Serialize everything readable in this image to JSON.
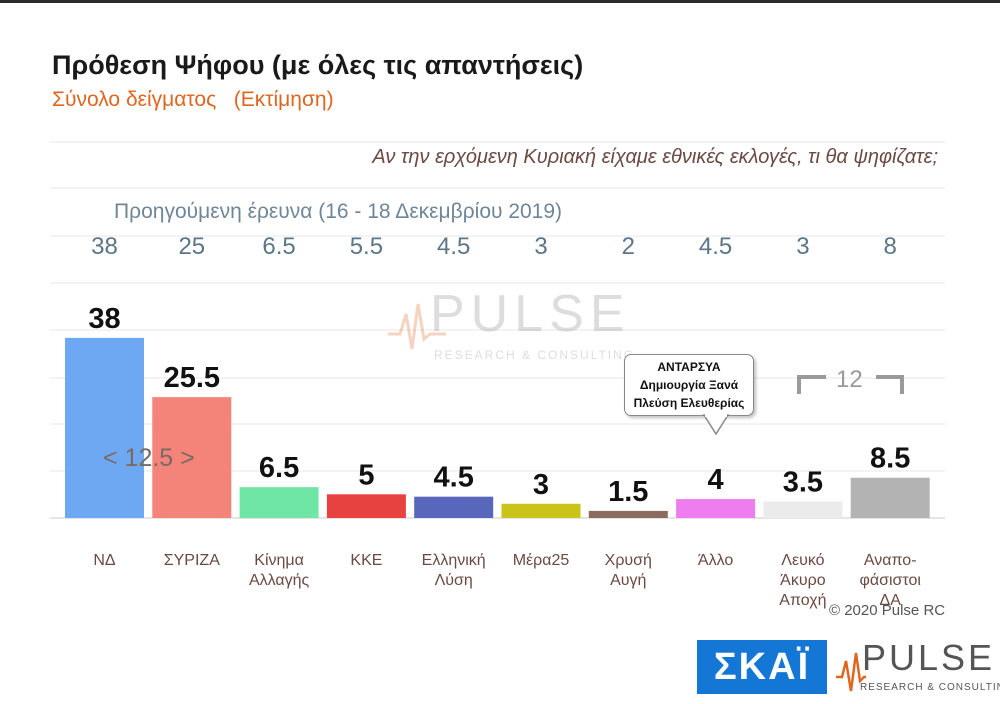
{
  "title": "Πρόθεση Ψήφου (με όλες τις απαντήσεις)",
  "subtitle": "Σύνολο δείγματος   (Εκτίμηση)",
  "question": "Αν την ερχόμενη Κυριακή είχαμε εθνικές εκλογές, τι θα ψηφίζατε;",
  "previous_survey_caption": "Προηγούμενη έρευνα  (16 - 18 Δεκεμβρίου  2019)",
  "callout": {
    "line1": "ΑΝΤΑΡΣΥΑ",
    "line2": "Δημιουργία Ξανά",
    "line3": "Πλεύση Ελευθερίας"
  },
  "bracket_label": "12",
  "diff_label": "< 12.5 >",
  "copyright": "© 2020 Pulse RC",
  "logos": {
    "skai": "ΣΚΑΪ",
    "pulse": "PULSE",
    "pulse_sub": "RESEARCH & CONSULTING"
  },
  "watermark": {
    "word": "PULSE",
    "sub": "RESEARCH & CONSULTING"
  },
  "chart_data": {
    "type": "bar",
    "categories": [
      [
        "ΝΔ"
      ],
      [
        "ΣΥΡΙΖΑ"
      ],
      [
        "Κίνημα",
        "Αλλαγής"
      ],
      [
        "ΚΚΕ"
      ],
      [
        "Ελληνική",
        "Λύση"
      ],
      [
        "Μέρα25"
      ],
      [
        "Χρυσή",
        "Αυγή"
      ],
      [
        "Άλλο"
      ],
      [
        "Λευκό",
        "Άκυρο",
        "Αποχή"
      ],
      [
        "Αναπο-",
        "φάσιστοι",
        "ΔΑ"
      ]
    ],
    "values": [
      38,
      25.5,
      6.5,
      5,
      4.5,
      3,
      1.5,
      4,
      3.5,
      8.5
    ],
    "value_labels": [
      "38",
      "25.5",
      "6.5",
      "5",
      "4.5",
      "3",
      "1.5",
      "4",
      "3.5",
      "8.5"
    ],
    "previous_values": [
      "38",
      "25",
      "6.5",
      "5.5",
      "4.5",
      "3",
      "2",
      "4.5",
      "3",
      "8"
    ],
    "colors": [
      "#6fa8f2",
      "#f4837a",
      "#6fe6a6",
      "#e84240",
      "#5866bb",
      "#c9c31a",
      "#8a6b5e",
      "#ee7ef0",
      "#ebebeb",
      "#b3b3b3"
    ],
    "ylim": [
      0,
      40
    ],
    "grid": true
  }
}
